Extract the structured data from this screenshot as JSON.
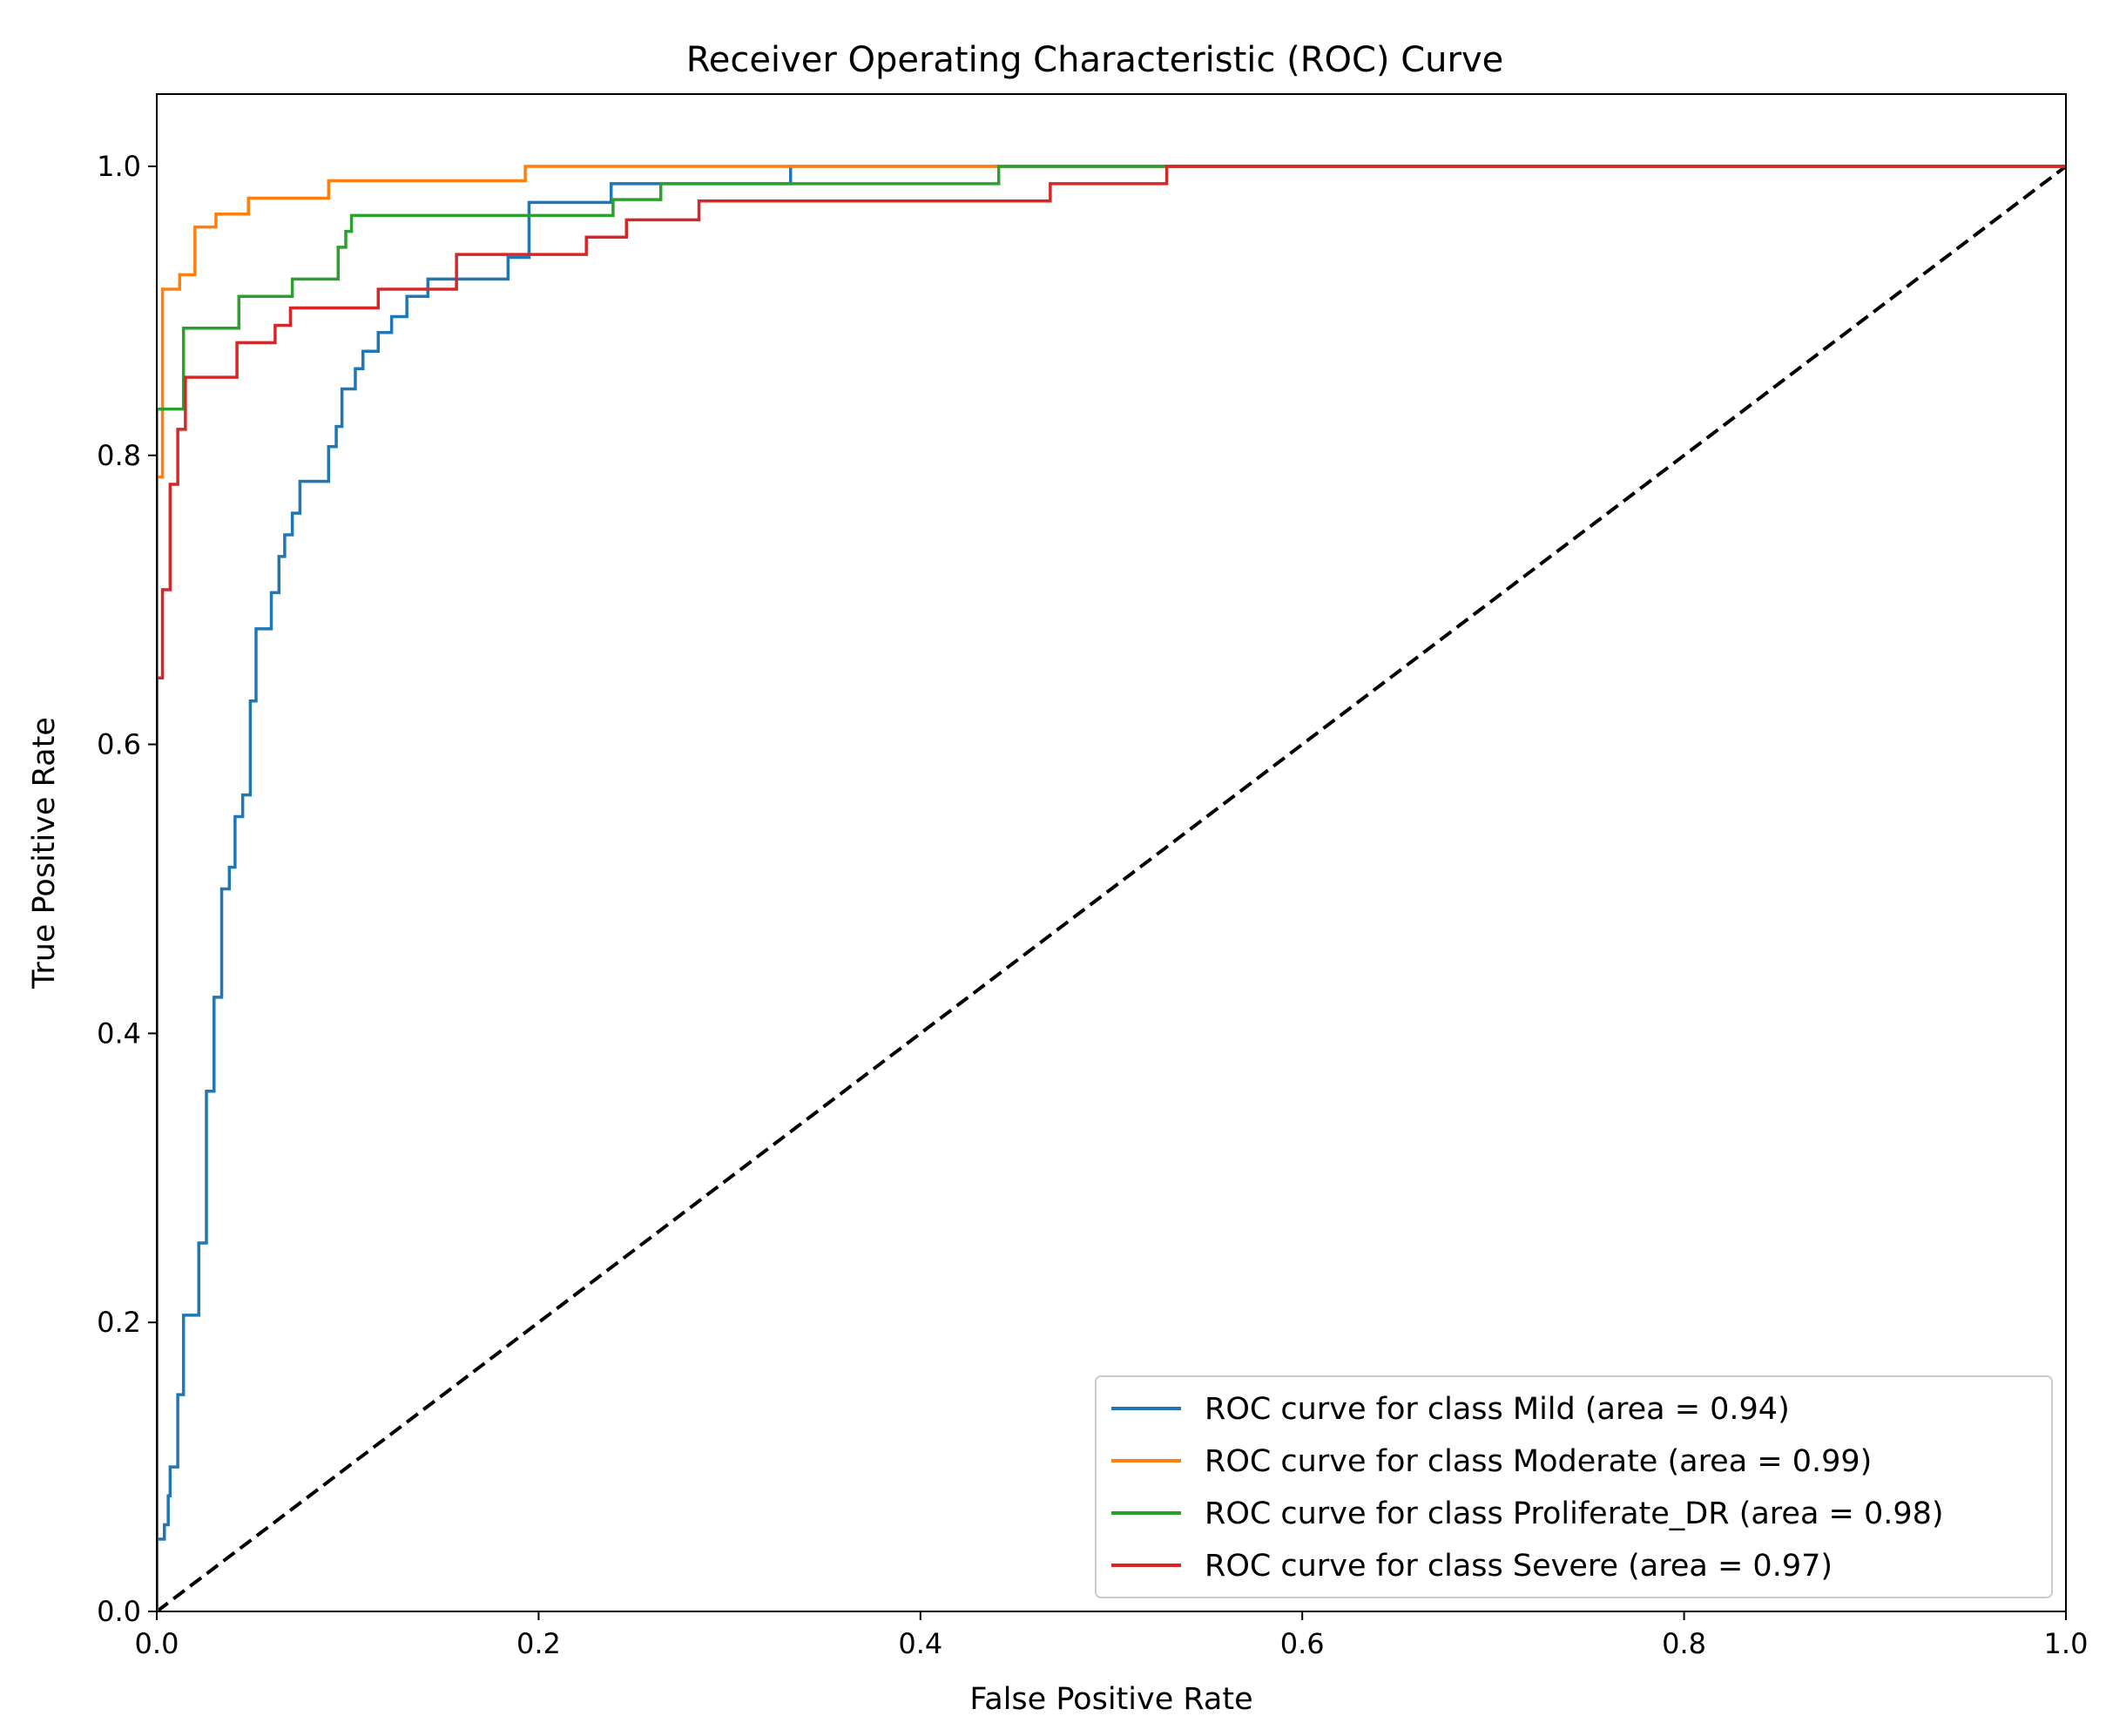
{
  "chart_data": {
    "type": "line",
    "title": "Receiver Operating Characteristic (ROC) Curve",
    "xlabel": "False Positive Rate",
    "ylabel": "True Positive Rate",
    "xlim": [
      0.0,
      1.0
    ],
    "ylim": [
      0.0,
      1.05
    ],
    "xticks": [
      "0.0",
      "0.2",
      "0.4",
      "0.6",
      "0.8",
      "1.0"
    ],
    "yticks": [
      "0.0",
      "0.2",
      "0.4",
      "0.6",
      "0.8",
      "1.0"
    ],
    "grid": false,
    "legend_position": "lower-right",
    "series": [
      {
        "name": "ROC curve for class Mild (area = 0.94)",
        "color": "#1f77b4",
        "points": [
          [
            0,
            0
          ],
          [
            0,
            0.05
          ],
          [
            0.004,
            0.05
          ],
          [
            0.004,
            0.06
          ],
          [
            0.006,
            0.06
          ],
          [
            0.006,
            0.08
          ],
          [
            0.007,
            0.08
          ],
          [
            0.007,
            0.1
          ],
          [
            0.011,
            0.1
          ],
          [
            0.011,
            0.15
          ],
          [
            0.014,
            0.15
          ],
          [
            0.014,
            0.205
          ],
          [
            0.022,
            0.205
          ],
          [
            0.022,
            0.255
          ],
          [
            0.026,
            0.255
          ],
          [
            0.026,
            0.36
          ],
          [
            0.03,
            0.36
          ],
          [
            0.03,
            0.425
          ],
          [
            0.034,
            0.425
          ],
          [
            0.034,
            0.5
          ],
          [
            0.038,
            0.5
          ],
          [
            0.038,
            0.515
          ],
          [
            0.041,
            0.515
          ],
          [
            0.041,
            0.55
          ],
          [
            0.045,
            0.55
          ],
          [
            0.045,
            0.565
          ],
          [
            0.049,
            0.565
          ],
          [
            0.049,
            0.63
          ],
          [
            0.052,
            0.63
          ],
          [
            0.052,
            0.68
          ],
          [
            0.06,
            0.68
          ],
          [
            0.06,
            0.705
          ],
          [
            0.064,
            0.705
          ],
          [
            0.064,
            0.73
          ],
          [
            0.067,
            0.73
          ],
          [
            0.067,
            0.745
          ],
          [
            0.071,
            0.745
          ],
          [
            0.071,
            0.76
          ],
          [
            0.075,
            0.76
          ],
          [
            0.075,
            0.782
          ],
          [
            0.09,
            0.782
          ],
          [
            0.09,
            0.806
          ],
          [
            0.094,
            0.806
          ],
          [
            0.094,
            0.82
          ],
          [
            0.097,
            0.82
          ],
          [
            0.097,
            0.846
          ],
          [
            0.104,
            0.846
          ],
          [
            0.104,
            0.86
          ],
          [
            0.108,
            0.86
          ],
          [
            0.108,
            0.872
          ],
          [
            0.116,
            0.872
          ],
          [
            0.116,
            0.885
          ],
          [
            0.123,
            0.885
          ],
          [
            0.123,
            0.896
          ],
          [
            0.131,
            0.896
          ],
          [
            0.131,
            0.91
          ],
          [
            0.142,
            0.91
          ],
          [
            0.142,
            0.922
          ],
          [
            0.184,
            0.922
          ],
          [
            0.184,
            0.937
          ],
          [
            0.195,
            0.937
          ],
          [
            0.195,
            0.975
          ],
          [
            0.238,
            0.975
          ],
          [
            0.238,
            0.988
          ],
          [
            0.332,
            0.988
          ],
          [
            0.332,
            1.0
          ],
          [
            1.0,
            1.0
          ]
        ]
      },
      {
        "name": "ROC curve for class Moderate (area = 0.99)",
        "color": "#ff7f0e",
        "points": [
          [
            0,
            0
          ],
          [
            0,
            0.785
          ],
          [
            0.003,
            0.785
          ],
          [
            0.003,
            0.915
          ],
          [
            0.012,
            0.915
          ],
          [
            0.012,
            0.925
          ],
          [
            0.02,
            0.925
          ],
          [
            0.02,
            0.958
          ],
          [
            0.031,
            0.958
          ],
          [
            0.031,
            0.967
          ],
          [
            0.048,
            0.967
          ],
          [
            0.048,
            0.978
          ],
          [
            0.09,
            0.978
          ],
          [
            0.09,
            0.99
          ],
          [
            0.193,
            0.99
          ],
          [
            0.193,
            1.0
          ],
          [
            1.0,
            1.0
          ]
        ]
      },
      {
        "name": "ROC curve for class Proliferate_DR (area = 0.98)",
        "color": "#2ca02c",
        "points": [
          [
            0,
            0
          ],
          [
            0,
            0.832
          ],
          [
            0.014,
            0.832
          ],
          [
            0.014,
            0.888
          ],
          [
            0.043,
            0.888
          ],
          [
            0.043,
            0.91
          ],
          [
            0.071,
            0.91
          ],
          [
            0.071,
            0.922
          ],
          [
            0.095,
            0.922
          ],
          [
            0.095,
            0.944
          ],
          [
            0.099,
            0.944
          ],
          [
            0.099,
            0.955
          ],
          [
            0.102,
            0.955
          ],
          [
            0.102,
            0.966
          ],
          [
            0.239,
            0.966
          ],
          [
            0.239,
            0.977
          ],
          [
            0.264,
            0.977
          ],
          [
            0.264,
            0.988
          ],
          [
            0.441,
            0.988
          ],
          [
            0.441,
            1.0
          ],
          [
            1.0,
            1.0
          ]
        ]
      },
      {
        "name": "ROC curve for class Severe (area = 0.97)",
        "color": "#d62728",
        "points": [
          [
            0,
            0
          ],
          [
            0,
            0.646
          ],
          [
            0.003,
            0.646
          ],
          [
            0.003,
            0.707
          ],
          [
            0.007,
            0.707
          ],
          [
            0.007,
            0.78
          ],
          [
            0.011,
            0.78
          ],
          [
            0.011,
            0.818
          ],
          [
            0.015,
            0.818
          ],
          [
            0.015,
            0.854
          ],
          [
            0.042,
            0.854
          ],
          [
            0.042,
            0.878
          ],
          [
            0.062,
            0.878
          ],
          [
            0.062,
            0.89
          ],
          [
            0.07,
            0.89
          ],
          [
            0.07,
            0.902
          ],
          [
            0.116,
            0.902
          ],
          [
            0.116,
            0.915
          ],
          [
            0.157,
            0.915
          ],
          [
            0.157,
            0.939
          ],
          [
            0.225,
            0.939
          ],
          [
            0.225,
            0.951
          ],
          [
            0.246,
            0.951
          ],
          [
            0.246,
            0.963
          ],
          [
            0.284,
            0.963
          ],
          [
            0.284,
            0.976
          ],
          [
            0.468,
            0.976
          ],
          [
            0.468,
            0.988
          ],
          [
            0.529,
            0.988
          ],
          [
            0.529,
            1.0
          ],
          [
            1.0,
            1.0
          ]
        ]
      }
    ],
    "reference_line": {
      "style": "dashed",
      "color": "#000000",
      "points": [
        [
          0,
          0
        ],
        [
          1,
          1
        ]
      ]
    }
  }
}
